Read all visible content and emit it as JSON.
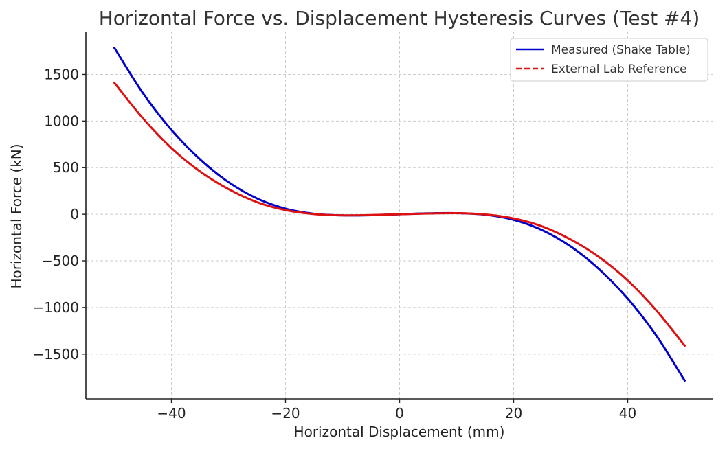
{
  "chart_data": {
    "type": "line",
    "title": "Horizontal Force vs. Displacement Hysteresis Curves (Test #4)",
    "xlabel": "Horizontal Displacement (mm)",
    "ylabel": "Horizontal Force (kN)",
    "xlim": [
      -55,
      55
    ],
    "ylim": [
      -1980,
      1960
    ],
    "x_ticks": [
      -40,
      -20,
      0,
      20,
      40
    ],
    "x_tick_labels": [
      "−40",
      "−20",
      "0",
      "20",
      "40"
    ],
    "y_ticks": [
      -1500,
      -1000,
      -500,
      0,
      500,
      1000,
      1500
    ],
    "y_tick_labels": [
      "−1500",
      "−1000",
      "−500",
      "0",
      "500",
      "1000",
      "1500"
    ],
    "grid": true,
    "legend_position": "top-right",
    "x": [
      -50,
      -45,
      -40,
      -35,
      -30,
      -25,
      -20,
      -15,
      -10,
      -5,
      0,
      5,
      10,
      15,
      20,
      25,
      30,
      35,
      40,
      45,
      50
    ],
    "series": [
      {
        "name": "Measured (Shake Table)",
        "color": "#0000cc",
        "line_style": "solid",
        "values": [
          1785,
          1300,
          905,
          590,
          345,
          170,
          60,
          5,
          -12,
          -10,
          0,
          10,
          12,
          -5,
          -60,
          -170,
          -345,
          -590,
          -905,
          -1300,
          -1785
        ]
      },
      {
        "name": "External Lab Reference",
        "color": "#dd1111",
        "line_style": "dashed",
        "values": [
          1410,
          1030,
          710,
          460,
          270,
          130,
          45,
          2,
          -12,
          -8,
          0,
          8,
          12,
          -2,
          -45,
          -130,
          -270,
          -460,
          -710,
          -1030,
          -1410
        ]
      }
    ]
  }
}
